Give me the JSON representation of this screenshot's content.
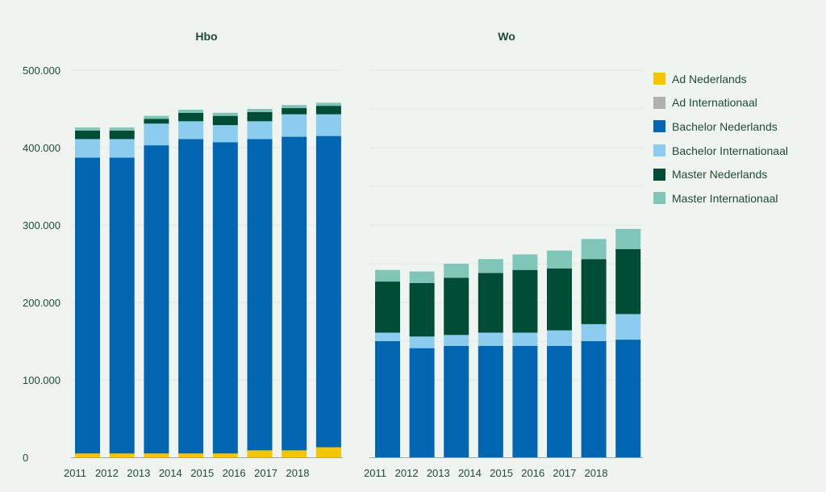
{
  "chart_data": {
    "type": "bar",
    "stacked": true,
    "y_tick_labels": [
      "0",
      "100.000",
      "200.000",
      "300.000",
      "400.000",
      "500.000"
    ],
    "y_ticks": [
      0,
      100000,
      200000,
      300000,
      400000,
      500000
    ],
    "ylim": [
      0,
      500000
    ],
    "grid": true,
    "legend_position": "right",
    "series": [
      {
        "name": "Ad Nederlands",
        "color": "#f7c400"
      },
      {
        "name": "Ad Internationaal",
        "color": "#b0b0b0"
      },
      {
        "name": "Bachelor Nederlands",
        "color": "#0066b2"
      },
      {
        "name": "Bachelor Internationaal",
        "color": "#8ccdef"
      },
      {
        "name": "Master Nederlands",
        "color": "#004d37"
      },
      {
        "name": "Master Internationaal",
        "color": "#7fc6b8"
      }
    ],
    "panels": [
      {
        "title": "Hbo",
        "categories": [
          "2011",
          "2012",
          "2013",
          "2014",
          "2015",
          "2016",
          "2017",
          "2018"
        ],
        "values": {
          "Ad Nederlands": [
            5000,
            5000,
            5000,
            5000,
            5000,
            9000,
            9000,
            13000
          ],
          "Ad Internationaal": [
            0,
            0,
            0,
            0,
            0,
            0,
            0,
            0
          ],
          "Bachelor Nederlands": [
            382000,
            382000,
            398000,
            406000,
            402000,
            402000,
            405000,
            402000
          ],
          "Bachelor Internationaal": [
            24000,
            24000,
            28000,
            23000,
            22000,
            23000,
            29000,
            28000
          ],
          "Master Nederlands": [
            11000,
            11000,
            6000,
            11000,
            12000,
            12000,
            8000,
            11000
          ],
          "Master Internationaal": [
            4000,
            4000,
            4000,
            4000,
            4000,
            4000,
            4000,
            4000
          ]
        }
      },
      {
        "title": "Wo",
        "categories": [
          "2011",
          "2012",
          "2013",
          "2014",
          "2015",
          "2016",
          "2017",
          "2018"
        ],
        "values": {
          "Ad Nederlands": [
            0,
            0,
            0,
            0,
            0,
            0,
            0,
            0
          ],
          "Ad Internationaal": [
            0,
            0,
            0,
            0,
            0,
            0,
            0,
            0
          ],
          "Bachelor Nederlands": [
            150000,
            141000,
            144000,
            144000,
            144000,
            144000,
            150000,
            152000
          ],
          "Bachelor Internationaal": [
            11000,
            15000,
            14000,
            17000,
            17000,
            20000,
            22000,
            33000
          ],
          "Master Nederlands": [
            66000,
            69000,
            74000,
            77000,
            81000,
            80000,
            84000,
            84000
          ],
          "Master Internationaal": [
            15000,
            15000,
            18000,
            18000,
            20000,
            23000,
            26000,
            26000
          ]
        }
      }
    ]
  }
}
